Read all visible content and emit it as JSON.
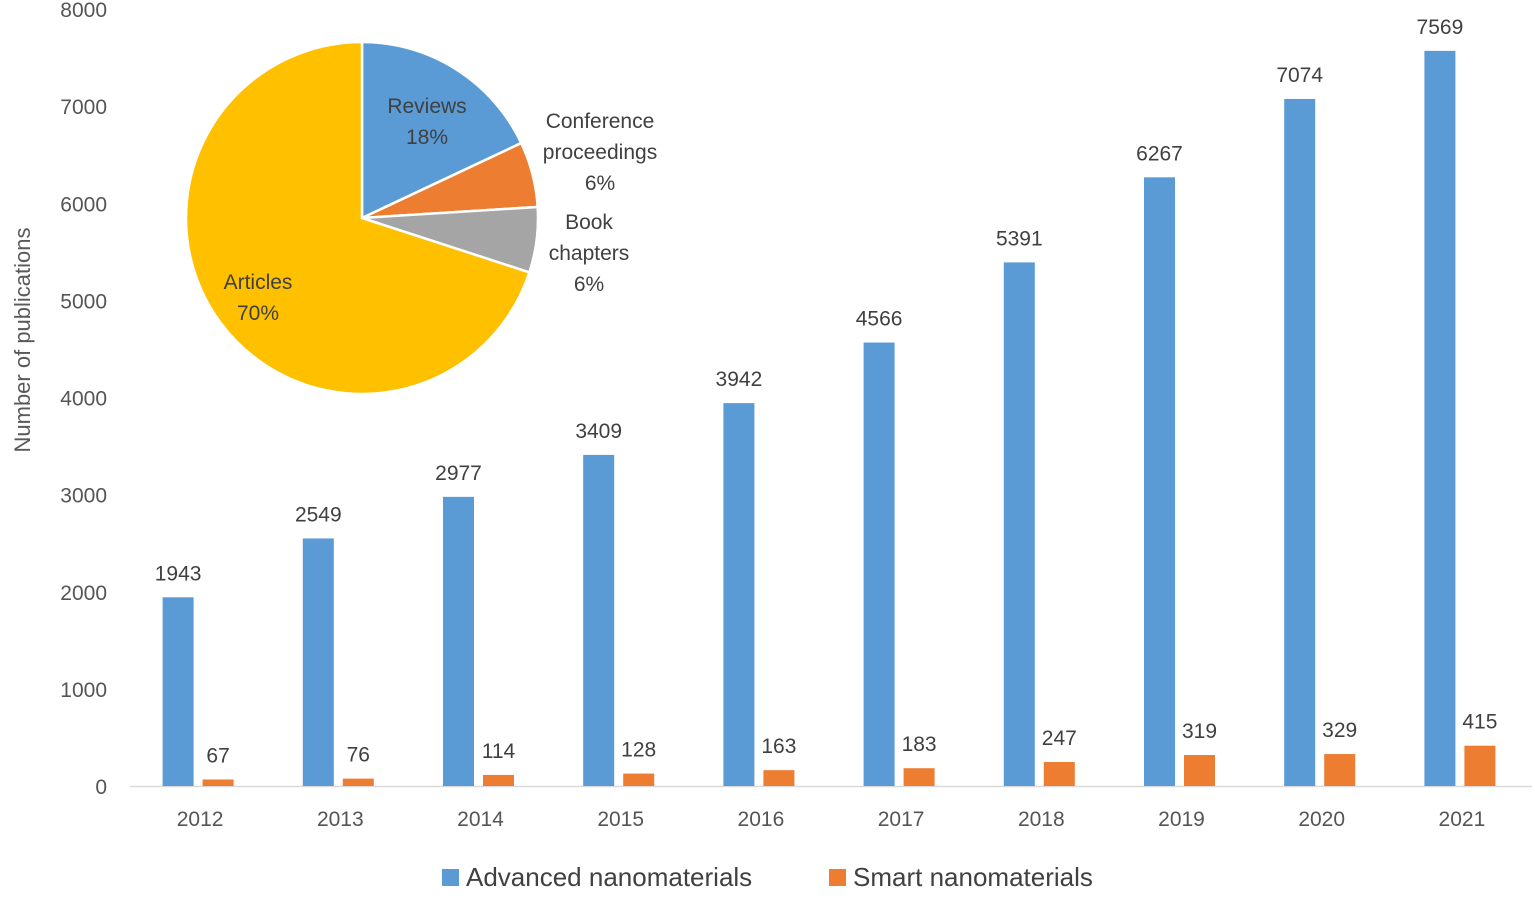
{
  "chart_data": [
    {
      "type": "bar",
      "title": "",
      "xlabel": "",
      "ylabel": "Number of publications",
      "ylim": [
        0,
        8000
      ],
      "yticks": [
        0,
        1000,
        2000,
        3000,
        4000,
        5000,
        6000,
        7000,
        8000
      ],
      "grid": false,
      "legend_position": "bottom",
      "categories": [
        "2012",
        "2013",
        "2014",
        "2015",
        "2016",
        "2017",
        "2018",
        "2019",
        "2020",
        "2021"
      ],
      "series": [
        {
          "name": "Advanced nanomaterials",
          "color": "#5b9bd5",
          "values": [
            1943,
            2549,
            2977,
            3409,
            3942,
            4566,
            5391,
            6267,
            7074,
            7569
          ]
        },
        {
          "name": "Smart nanomaterials",
          "color": "#ed7d31",
          "values": [
            67,
            76,
            114,
            128,
            163,
            183,
            247,
            319,
            329,
            415
          ]
        }
      ]
    },
    {
      "type": "pie",
      "title": "",
      "slices": [
        {
          "name": "Reviews",
          "lines": [
            "Reviews"
          ],
          "value": 18,
          "pct_label": "18%",
          "color": "#5b9bd5"
        },
        {
          "name": "Conference proceedings",
          "lines": [
            "Conference",
            "proceedings"
          ],
          "value": 6,
          "pct_label": "6%",
          "color": "#ed7d31"
        },
        {
          "name": "Book chapters",
          "lines": [
            "Book",
            "chapters"
          ],
          "value": 6,
          "pct_label": "6%",
          "color": "#a5a5a5"
        },
        {
          "name": "Articles",
          "lines": [
            "Articles"
          ],
          "value": 70,
          "pct_label": "70%",
          "color": "#ffc000"
        }
      ]
    }
  ]
}
